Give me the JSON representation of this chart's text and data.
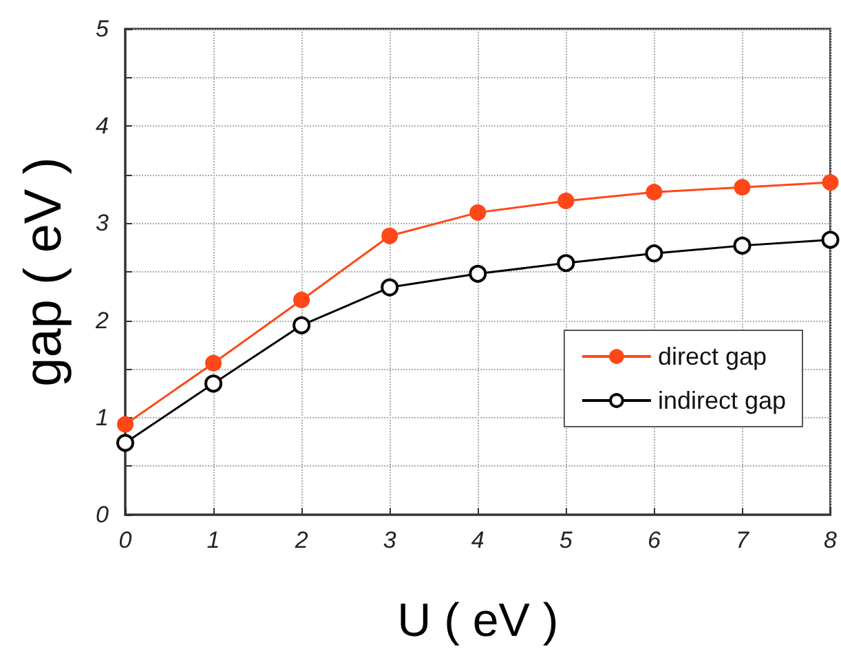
{
  "chart_data": {
    "type": "line",
    "xlabel": "U ( eV )",
    "ylabel": "gap ( eV )",
    "x": [
      0,
      1,
      2,
      3,
      4,
      5,
      6,
      7,
      8
    ],
    "series": [
      {
        "name": "direct gap",
        "color": "#ff4719",
        "values": [
          0.93,
          1.56,
          2.21,
          2.87,
          3.11,
          3.23,
          3.32,
          3.37,
          3.42
        ]
      },
      {
        "name": "indirect gap",
        "color": "#000000",
        "values": [
          0.74,
          1.35,
          1.95,
          2.34,
          2.48,
          2.59,
          2.69,
          2.77,
          2.83
        ]
      }
    ],
    "xlim": [
      0,
      8
    ],
    "xticks": [
      0,
      1,
      2,
      3,
      4,
      5,
      6,
      7,
      8
    ],
    "ylim": [
      0,
      5
    ],
    "yticks": [
      0,
      {
        "value": 0.5,
        "label": null
      },
      1,
      {
        "value": 1.5,
        "label": null
      },
      2,
      {
        "value": 2.5,
        "label": null
      },
      3,
      {
        "value": 3.5,
        "label": null
      },
      4,
      {
        "value": 4.5,
        "label": null
      },
      5
    ],
    "grid": true,
    "legend": "bottom right",
    "marker": "circle",
    "line_style": "solid"
  }
}
